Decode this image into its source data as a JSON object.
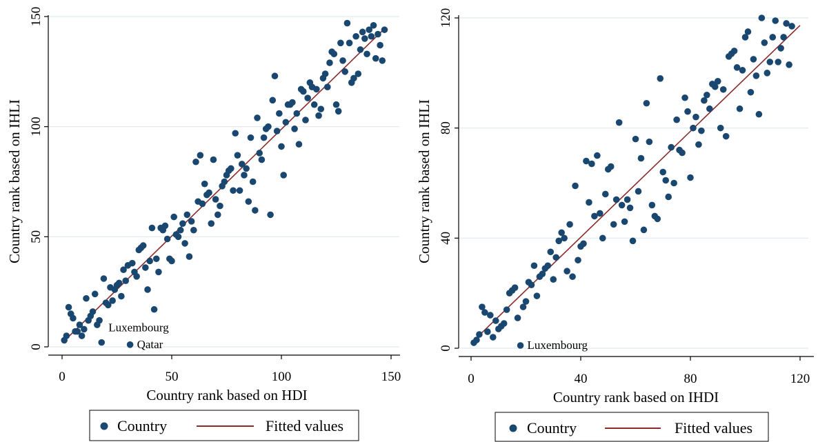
{
  "colors": {
    "point": "#1a4770",
    "fit": "#8b2a2a",
    "grid": "#dfe9ec",
    "axis": "#000000"
  },
  "legend": {
    "country": "Country",
    "fitted": "Fitted values"
  },
  "chart_data": [
    {
      "type": "scatter",
      "xlabel": "Country rank based on HDI",
      "ylabel": "Country rank based on IHLI",
      "xlim": [
        0,
        150
      ],
      "ylim": [
        0,
        150
      ],
      "xticks": [
        0,
        50,
        100,
        150
      ],
      "yticks": [
        0,
        50,
        100,
        150
      ],
      "grid": true,
      "legend_position": "bottom",
      "series": [
        {
          "name": "Country",
          "kind": "points",
          "points": [
            [
              1,
              3
            ],
            [
              2,
              5
            ],
            [
              3,
              18
            ],
            [
              4,
              15
            ],
            [
              5,
              13
            ],
            [
              6,
              7
            ],
            [
              7,
              7
            ],
            [
              8,
              10
            ],
            [
              9,
              5
            ],
            [
              10,
              8
            ],
            [
              11,
              22
            ],
            [
              12,
              12
            ],
            [
              13,
              14
            ],
            [
              14,
              16
            ],
            [
              15,
              24
            ],
            [
              16,
              10
            ],
            [
              17,
              12
            ],
            [
              18,
              2
            ],
            [
              19,
              31
            ],
            [
              20,
              20
            ],
            [
              21,
              19
            ],
            [
              22,
              27
            ],
            [
              23,
              21
            ],
            [
              24,
              26
            ],
            [
              25,
              28
            ],
            [
              26,
              29
            ],
            [
              27,
              23
            ],
            [
              28,
              35
            ],
            [
              29,
              30
            ],
            [
              30,
              37
            ],
            [
              31,
              1
            ],
            [
              32,
              38
            ],
            [
              33,
              34
            ],
            [
              34,
              32
            ],
            [
              35,
              44
            ],
            [
              36,
              45
            ],
            [
              37,
              46
            ],
            [
              38,
              36
            ],
            [
              39,
              26
            ],
            [
              40,
              39
            ],
            [
              41,
              54
            ],
            [
              42,
              17
            ],
            [
              43,
              40
            ],
            [
              44,
              34
            ],
            [
              45,
              54
            ],
            [
              46,
              53
            ],
            [
              47,
              55
            ],
            [
              48,
              49
            ],
            [
              49,
              40
            ],
            [
              50,
              39
            ],
            [
              51,
              59
            ],
            [
              52,
              51
            ],
            [
              53,
              50
            ],
            [
              54,
              53
            ],
            [
              55,
              56
            ],
            [
              56,
              47
            ],
            [
              57,
              60
            ],
            [
              58,
              41
            ],
            [
              59,
              57
            ],
            [
              60,
              53
            ],
            [
              61,
              84
            ],
            [
              62,
              66
            ],
            [
              63,
              87
            ],
            [
              64,
              65
            ],
            [
              65,
              74
            ],
            [
              66,
              69
            ],
            [
              67,
              70
            ],
            [
              68,
              56
            ],
            [
              69,
              85
            ],
            [
              70,
              67
            ],
            [
              71,
              60
            ],
            [
              72,
              64
            ],
            [
              73,
              73
            ],
            [
              74,
              75
            ],
            [
              75,
              78
            ],
            [
              76,
              80
            ],
            [
              77,
              81
            ],
            [
              78,
              71
            ],
            [
              79,
              97
            ],
            [
              80,
              87
            ],
            [
              81,
              71
            ],
            [
              82,
              83
            ],
            [
              83,
              78
            ],
            [
              84,
              81
            ],
            [
              85,
              66
            ],
            [
              86,
              95
            ],
            [
              87,
              75
            ],
            [
              88,
              62
            ],
            [
              89,
              104
            ],
            [
              90,
              88
            ],
            [
              91,
              85
            ],
            [
              92,
              95
            ],
            [
              93,
              99
            ],
            [
              94,
              100
            ],
            [
              95,
              60
            ],
            [
              96,
              112
            ],
            [
              97,
              123
            ],
            [
              98,
              98
            ],
            [
              99,
              106
            ],
            [
              100,
              91
            ],
            [
              101,
              78
            ],
            [
              102,
              102
            ],
            [
              103,
              110
            ],
            [
              104,
              110
            ],
            [
              105,
              111
            ],
            [
              106,
              99
            ],
            [
              107,
              106
            ],
            [
              108,
              92
            ],
            [
              109,
              117
            ],
            [
              110,
              116
            ],
            [
              111,
              103
            ],
            [
              112,
              113
            ],
            [
              113,
              120
            ],
            [
              114,
              118
            ],
            [
              115,
              110
            ],
            [
              116,
              117
            ],
            [
              117,
              105
            ],
            [
              118,
              108
            ],
            [
              119,
              122
            ],
            [
              120,
              124
            ],
            [
              121,
              118
            ],
            [
              122,
              129
            ],
            [
              123,
              134
            ],
            [
              124,
              133
            ],
            [
              125,
              110
            ],
            [
              126,
              107
            ],
            [
              127,
              138
            ],
            [
              128,
              130
            ],
            [
              129,
              125
            ],
            [
              130,
              147
            ],
            [
              131,
              138
            ],
            [
              132,
              120
            ],
            [
              133,
              122
            ],
            [
              134,
              141
            ],
            [
              135,
              124
            ],
            [
              136,
              135
            ],
            [
              137,
              143
            ],
            [
              138,
              140
            ],
            [
              139,
              133
            ],
            [
              140,
              144
            ],
            [
              141,
              141
            ],
            [
              142,
              146
            ],
            [
              143,
              131
            ],
            [
              144,
              142
            ],
            [
              145,
              137
            ],
            [
              146,
              130
            ],
            [
              147,
              144
            ]
          ]
        },
        {
          "name": "Fitted values",
          "kind": "line",
          "points": [
            [
              1,
              2.7
            ],
            [
              147,
              144.5
            ]
          ]
        }
      ],
      "annotations": [
        {
          "text": "Luxembourg",
          "x": 18,
          "y": 2
        },
        {
          "text": "Qatar",
          "x": 31,
          "y": 1
        }
      ]
    },
    {
      "type": "scatter",
      "xlabel": "Country rank based on IHDI",
      "ylabel": "Country rank based on IHLI",
      "xlim": [
        0,
        120
      ],
      "ylim": [
        0,
        120
      ],
      "xticks": [
        0,
        40,
        80,
        120
      ],
      "yticks": [
        0,
        40,
        80,
        120
      ],
      "grid": true,
      "legend_position": "bottom",
      "series": [
        {
          "name": "Country",
          "kind": "points",
          "points": [
            [
              1,
              2
            ],
            [
              2,
              3
            ],
            [
              3,
              5
            ],
            [
              4,
              15
            ],
            [
              5,
              13
            ],
            [
              6,
              6
            ],
            [
              7,
              12
            ],
            [
              8,
              4
            ],
            [
              9,
              10
            ],
            [
              10,
              7
            ],
            [
              11,
              8
            ],
            [
              12,
              9
            ],
            [
              13,
              14
            ],
            [
              14,
              20
            ],
            [
              15,
              21
            ],
            [
              16,
              22
            ],
            [
              17,
              11
            ],
            [
              18,
              1
            ],
            [
              19,
              15
            ],
            [
              20,
              17
            ],
            [
              21,
              24
            ],
            [
              22,
              23
            ],
            [
              23,
              30
            ],
            [
              24,
              19
            ],
            [
              25,
              26
            ],
            [
              26,
              27
            ],
            [
              27,
              29
            ],
            [
              28,
              30
            ],
            [
              29,
              35
            ],
            [
              30,
              25
            ],
            [
              31,
              33
            ],
            [
              32,
              39
            ],
            [
              33,
              42
            ],
            [
              34,
              40
            ],
            [
              35,
              28
            ],
            [
              36,
              45
            ],
            [
              37,
              26
            ],
            [
              38,
              59
            ],
            [
              39,
              32
            ],
            [
              40,
              37
            ],
            [
              41,
              38
            ],
            [
              42,
              68
            ],
            [
              43,
              53
            ],
            [
              44,
              67
            ],
            [
              45,
              48
            ],
            [
              46,
              70
            ],
            [
              47,
              49
            ],
            [
              48,
              40
            ],
            [
              49,
              56
            ],
            [
              50,
              65
            ],
            [
              51,
              66
            ],
            [
              52,
              45
            ],
            [
              53,
              54
            ],
            [
              54,
              82
            ],
            [
              55,
              52
            ],
            [
              56,
              46
            ],
            [
              57,
              54
            ],
            [
              58,
              51
            ],
            [
              59,
              39
            ],
            [
              60,
              76
            ],
            [
              61,
              57
            ],
            [
              62,
              69
            ],
            [
              63,
              43
            ],
            [
              64,
              89
            ],
            [
              65,
              75
            ],
            [
              66,
              52
            ],
            [
              67,
              48
            ],
            [
              68,
              47
            ],
            [
              69,
              98
            ],
            [
              70,
              64
            ],
            [
              71,
              61
            ],
            [
              72,
              55
            ],
            [
              73,
              73
            ],
            [
              74,
              60
            ],
            [
              75,
              83
            ],
            [
              76,
              72
            ],
            [
              77,
              71
            ],
            [
              78,
              91
            ],
            [
              79,
              86
            ],
            [
              80,
              62
            ],
            [
              81,
              80
            ],
            [
              82,
              84
            ],
            [
              83,
              74
            ],
            [
              84,
              79
            ],
            [
              85,
              90
            ],
            [
              86,
              92
            ],
            [
              87,
              87
            ],
            [
              88,
              96
            ],
            [
              89,
              95
            ],
            [
              90,
              97
            ],
            [
              91,
              80
            ],
            [
              92,
              94
            ],
            [
              93,
              77
            ],
            [
              94,
              106
            ],
            [
              95,
              107
            ],
            [
              96,
              108
            ],
            [
              97,
              102
            ],
            [
              98,
              87
            ],
            [
              99,
              101
            ],
            [
              100,
              113
            ],
            [
              101,
              115
            ],
            [
              102,
              93
            ],
            [
              103,
              105
            ],
            [
              104,
              99
            ],
            [
              105,
              85
            ],
            [
              106,
              120
            ],
            [
              107,
              111
            ],
            [
              108,
              100
            ],
            [
              109,
              104
            ],
            [
              110,
              113
            ],
            [
              111,
              119
            ],
            [
              112,
              104
            ],
            [
              113,
              109
            ],
            [
              114,
              113
            ],
            [
              115,
              118
            ],
            [
              116,
              103
            ],
            [
              117,
              117
            ]
          ]
        },
        {
          "name": "Fitted values",
          "kind": "line",
          "points": [
            [
              1,
              2.8
            ],
            [
              120,
              117.3
            ]
          ]
        }
      ],
      "annotations": [
        {
          "text": "Luxembourg",
          "x": 18,
          "y": 1
        }
      ]
    }
  ]
}
